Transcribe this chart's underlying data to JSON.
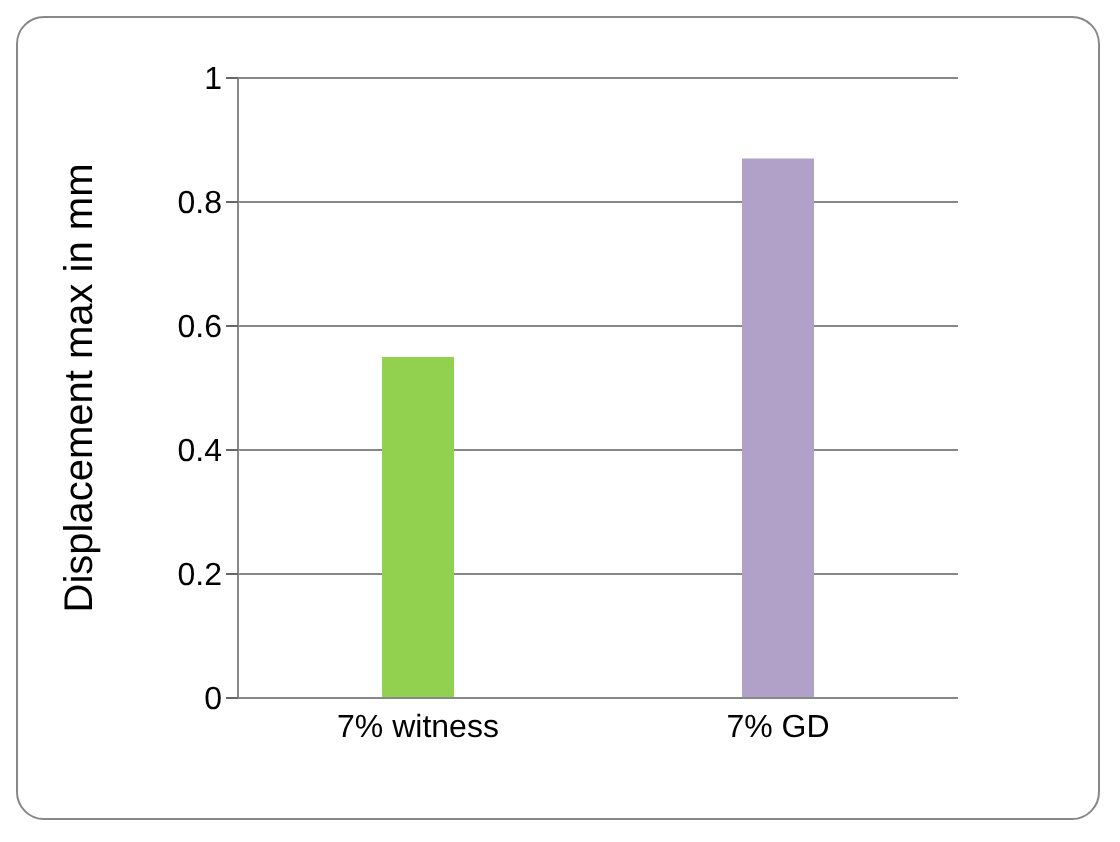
{
  "chart_data": {
    "type": "bar",
    "ylabel": "Displacement max in mm",
    "categories": [
      "7% witness",
      "7% GD"
    ],
    "values": [
      0.55,
      0.87
    ],
    "colors": [
      "#92d050",
      "#b1a0c7"
    ],
    "ylim": [
      0,
      1
    ],
    "yticks": [
      0,
      0.2,
      0.4,
      0.6,
      0.8,
      1
    ],
    "grid": "y"
  }
}
